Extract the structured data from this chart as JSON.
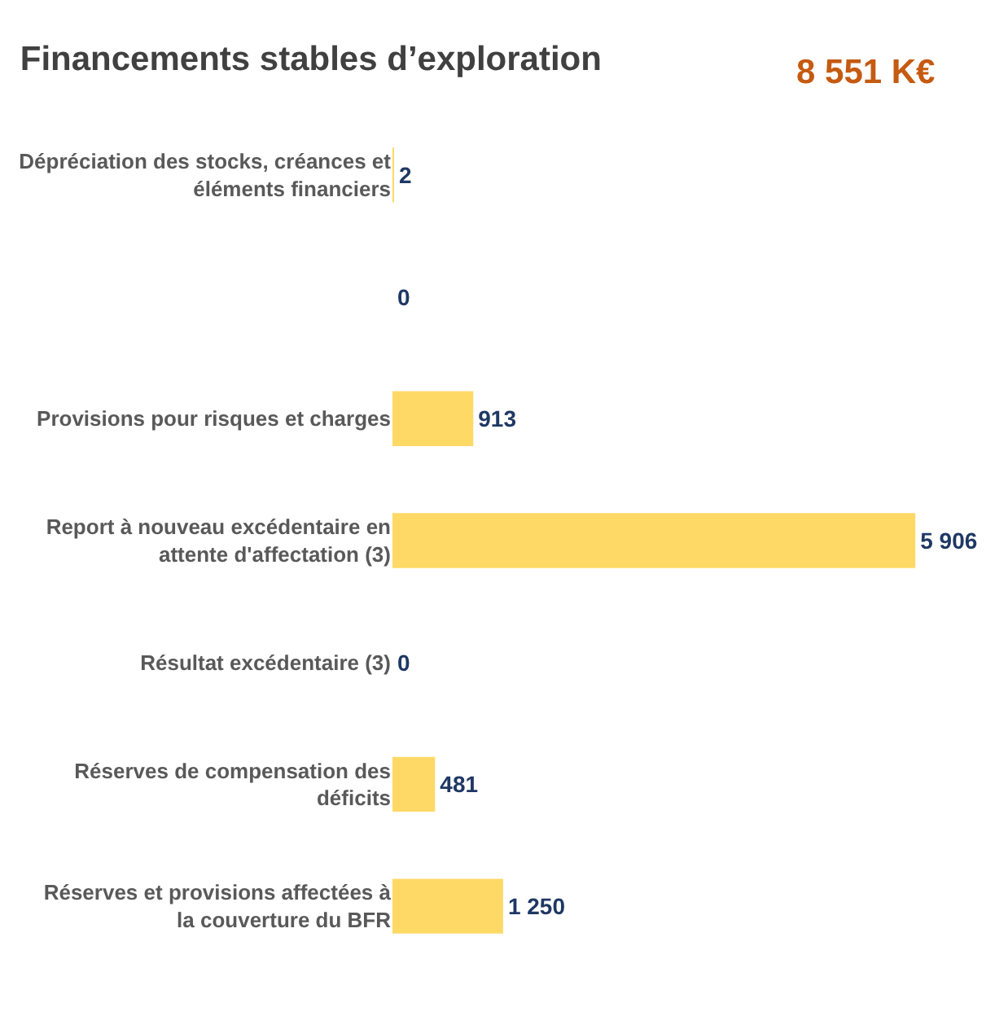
{
  "chart_data": {
    "type": "bar",
    "orientation": "horizontal",
    "title": "Financements stables d’exploration",
    "annotations": [
      "8 551 K€"
    ],
    "categories": [
      "Dépréciation des stocks, créances et éléments financiers",
      null,
      "Provisions pour risques et charges",
      "Report à nouveau excédentaire en attente d'affectation (3)",
      "Résultat excédentaire (3)",
      "Réserves de compensation des déficits",
      "Réserves et provisions affectées à la couverture du BFR"
    ],
    "values": [
      2,
      0,
      913,
      5906,
      0,
      481,
      1250
    ],
    "value_labels": [
      "2",
      "0",
      "913",
      "5 906",
      "0",
      "481",
      "1 250"
    ],
    "color": "#ffd966"
  }
}
